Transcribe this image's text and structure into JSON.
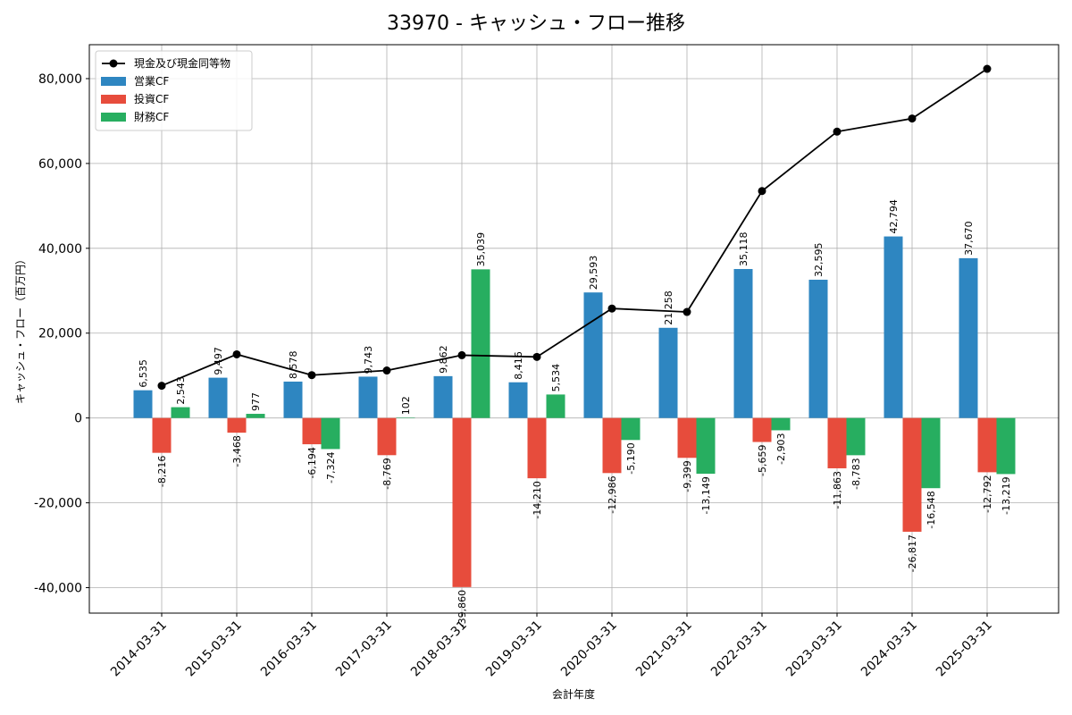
{
  "chart_data": {
    "type": "bar",
    "title": "33970 - キャッシュ・フロー推移",
    "xlabel": "会計年度",
    "ylabel": "キャッシュ・フロー（百万円）",
    "ylim": [
      -46000,
      88000
    ],
    "yticks": [
      -40000,
      -20000,
      0,
      20000,
      40000,
      60000,
      80000
    ],
    "ytick_labels": [
      "-40,000",
      "-20,000",
      "0",
      "20,000",
      "40,000",
      "60,000",
      "80,000"
    ],
    "grid": true,
    "legend_position": "top-left",
    "categories": [
      "2014-03-31",
      "2015-03-31",
      "2016-03-31",
      "2017-03-31",
      "2018-03-31",
      "2019-03-31",
      "2020-03-31",
      "2021-03-31",
      "2022-03-31",
      "2023-03-31",
      "2024-03-31",
      "2025-03-31"
    ],
    "series": [
      {
        "name": "営業CF",
        "kind": "bar",
        "color": "#2e86c1",
        "values": [
          6535,
          9497,
          8578,
          9743,
          9862,
          8416,
          29593,
          21258,
          35118,
          32595,
          42794,
          37670
        ],
        "labels": [
          "6,535",
          "9,497",
          "8,578",
          "9,743",
          "9,862",
          "8,416",
          "29,593",
          "21,258",
          "35,118",
          "32,595",
          "42,794",
          "37,670"
        ]
      },
      {
        "name": "投資CF",
        "kind": "bar",
        "color": "#e74c3c",
        "values": [
          -8216,
          -3468,
          -6194,
          -8769,
          -39860,
          -14210,
          -12986,
          -9399,
          -5659,
          -11863,
          -26817,
          -12792
        ],
        "labels": [
          "-8,216",
          "-3,468",
          "-6,194",
          "-8,769",
          "-39,860",
          "-14,210",
          "-12,986",
          "-9,399",
          "-5,659",
          "-11,863",
          "-26,817",
          "-12,792"
        ]
      },
      {
        "name": "財務CF",
        "kind": "bar",
        "color": "#27ae60",
        "values": [
          2543,
          977,
          -7324,
          102,
          35039,
          5534,
          -5190,
          -13149,
          -2903,
          -8783,
          -16548,
          -13219
        ],
        "labels": [
          "2,543",
          "977",
          "-7,324",
          "102",
          "35,039",
          "5,534",
          "-5,190",
          "-13,149",
          "-2,903",
          "-8,783",
          "-16,548",
          "-13,219"
        ]
      },
      {
        "name": "現金及び現金同等物",
        "kind": "line",
        "color": "#000000",
        "values": [
          7600,
          15000,
          10100,
          11200,
          14800,
          14400,
          25800,
          25000,
          53500,
          67500,
          70600,
          82300
        ]
      }
    ]
  }
}
